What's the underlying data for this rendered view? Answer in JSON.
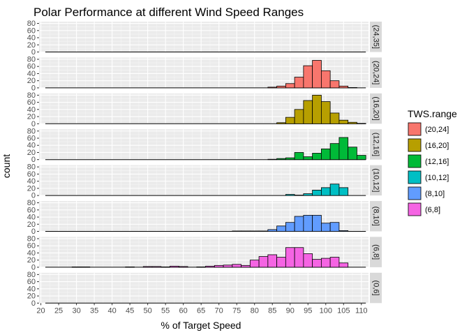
{
  "chart_data": {
    "type": "bar",
    "title": "Polar Performance at different Wind Speed Ranges",
    "xlabel": "% of Target Speed",
    "ylabel": "count",
    "xlim": [
      19.5,
      112
    ],
    "ylim": [
      0,
      85
    ],
    "x_ticks": [
      "20",
      "25",
      "30",
      "35",
      "40",
      "45",
      "50",
      "55",
      "60",
      "65",
      "70",
      "75",
      "80",
      "85",
      "90",
      "95",
      "100",
      "105",
      "110"
    ],
    "y_ticks": [
      "0",
      "20",
      "40",
      "60",
      "80"
    ],
    "bin_width": 2.5,
    "bin_starts": [
      21.25,
      23.75,
      26.25,
      28.75,
      31.25,
      33.75,
      36.25,
      38.75,
      41.25,
      43.75,
      46.25,
      48.75,
      51.25,
      53.75,
      56.25,
      58.75,
      61.25,
      63.75,
      66.25,
      68.75,
      71.25,
      73.75,
      76.25,
      78.75,
      81.25,
      83.75,
      86.25,
      88.75,
      91.25,
      93.75,
      96.25,
      98.75,
      101.25,
      103.75,
      106.25,
      108.75
    ],
    "grid": true,
    "legend": {
      "title": "TWS.range",
      "position": "right",
      "entries": [
        {
          "label": "(20,24]",
          "color": "#F8766D"
        },
        {
          "label": "(16,20]",
          "color": "#B79F00"
        },
        {
          "label": "(12,16]",
          "color": "#00BA38"
        },
        {
          "label": "(10,12]",
          "color": "#00BFC4"
        },
        {
          "label": "(8,10]",
          "color": "#619CFF"
        },
        {
          "label": "(6,8]",
          "color": "#F564E3"
        }
      ]
    },
    "panels": [
      {
        "strip": "(24,35]",
        "color": "#F8766D",
        "values": [
          0,
          0,
          0,
          0,
          0,
          0,
          0,
          0,
          0,
          0,
          0,
          0,
          0,
          0,
          0,
          0,
          0,
          0,
          0,
          0,
          0,
          0,
          0,
          0,
          0,
          0,
          0,
          0,
          0,
          0,
          0,
          0,
          0,
          0,
          0,
          0
        ]
      },
      {
        "strip": "(20,24]",
        "color": "#F8766D",
        "values": [
          0,
          0,
          0,
          0,
          0,
          0,
          0,
          0,
          0,
          0,
          0,
          0,
          0,
          0,
          0,
          0,
          0,
          0,
          0,
          0,
          0,
          0,
          0,
          0,
          0,
          2,
          5,
          12,
          30,
          62,
          77,
          48,
          20,
          5,
          1,
          0
        ]
      },
      {
        "strip": "(16,20]",
        "color": "#B79F00",
        "values": [
          0,
          0,
          0,
          0,
          0,
          0,
          0,
          0,
          0,
          0,
          0,
          0,
          0,
          0,
          0,
          0,
          0,
          0,
          0,
          0,
          0,
          0,
          0,
          0,
          0,
          0,
          3,
          18,
          40,
          65,
          80,
          62,
          30,
          10,
          4,
          1
        ]
      },
      {
        "strip": "(12,16]",
        "color": "#00BA38",
        "values": [
          0,
          0,
          0,
          0,
          0,
          0,
          0,
          0,
          0,
          0,
          0,
          0,
          0,
          0,
          0,
          0,
          0,
          0,
          0,
          0,
          0,
          0,
          0,
          0,
          0,
          1,
          3,
          5,
          20,
          8,
          18,
          30,
          45,
          62,
          35,
          12
        ]
      },
      {
        "strip": "(10,12]",
        "color": "#00BFC4",
        "values": [
          0,
          0,
          0,
          0,
          0,
          0,
          0,
          0,
          0,
          0,
          0,
          0,
          0,
          0,
          0,
          0,
          0,
          0,
          0,
          0,
          0,
          0,
          0,
          0,
          0,
          0,
          0,
          3,
          1,
          5,
          15,
          22,
          32,
          22,
          0,
          0
        ]
      },
      {
        "strip": "(8,10]",
        "color": "#619CFF",
        "values": [
          0,
          0,
          0,
          0,
          0,
          0,
          0,
          0,
          0,
          0,
          0,
          0,
          0,
          0,
          0,
          0,
          0,
          0,
          0,
          0,
          0,
          1,
          1,
          1,
          1,
          5,
          15,
          25,
          42,
          45,
          45,
          23,
          25,
          2,
          0,
          0
        ]
      },
      {
        "strip": "(6,8]",
        "color": "#F564E3",
        "values": [
          0,
          0,
          0,
          1,
          1,
          0,
          0,
          0,
          0,
          1,
          0,
          2,
          2,
          1,
          3,
          2,
          0,
          1,
          3,
          5,
          6,
          8,
          5,
          20,
          30,
          35,
          28,
          55,
          55,
          38,
          22,
          25,
          28,
          12,
          0,
          0
        ]
      },
      {
        "strip": "(0,6]",
        "color": "#F8766D",
        "values": [
          0,
          0,
          0,
          0,
          0,
          0,
          0,
          0,
          0,
          0,
          0,
          0,
          0,
          0,
          0,
          0,
          0,
          0,
          0,
          0,
          0,
          0,
          0,
          0,
          0,
          0,
          0,
          0,
          0,
          0,
          0,
          0,
          0,
          0,
          0,
          0
        ]
      }
    ]
  }
}
